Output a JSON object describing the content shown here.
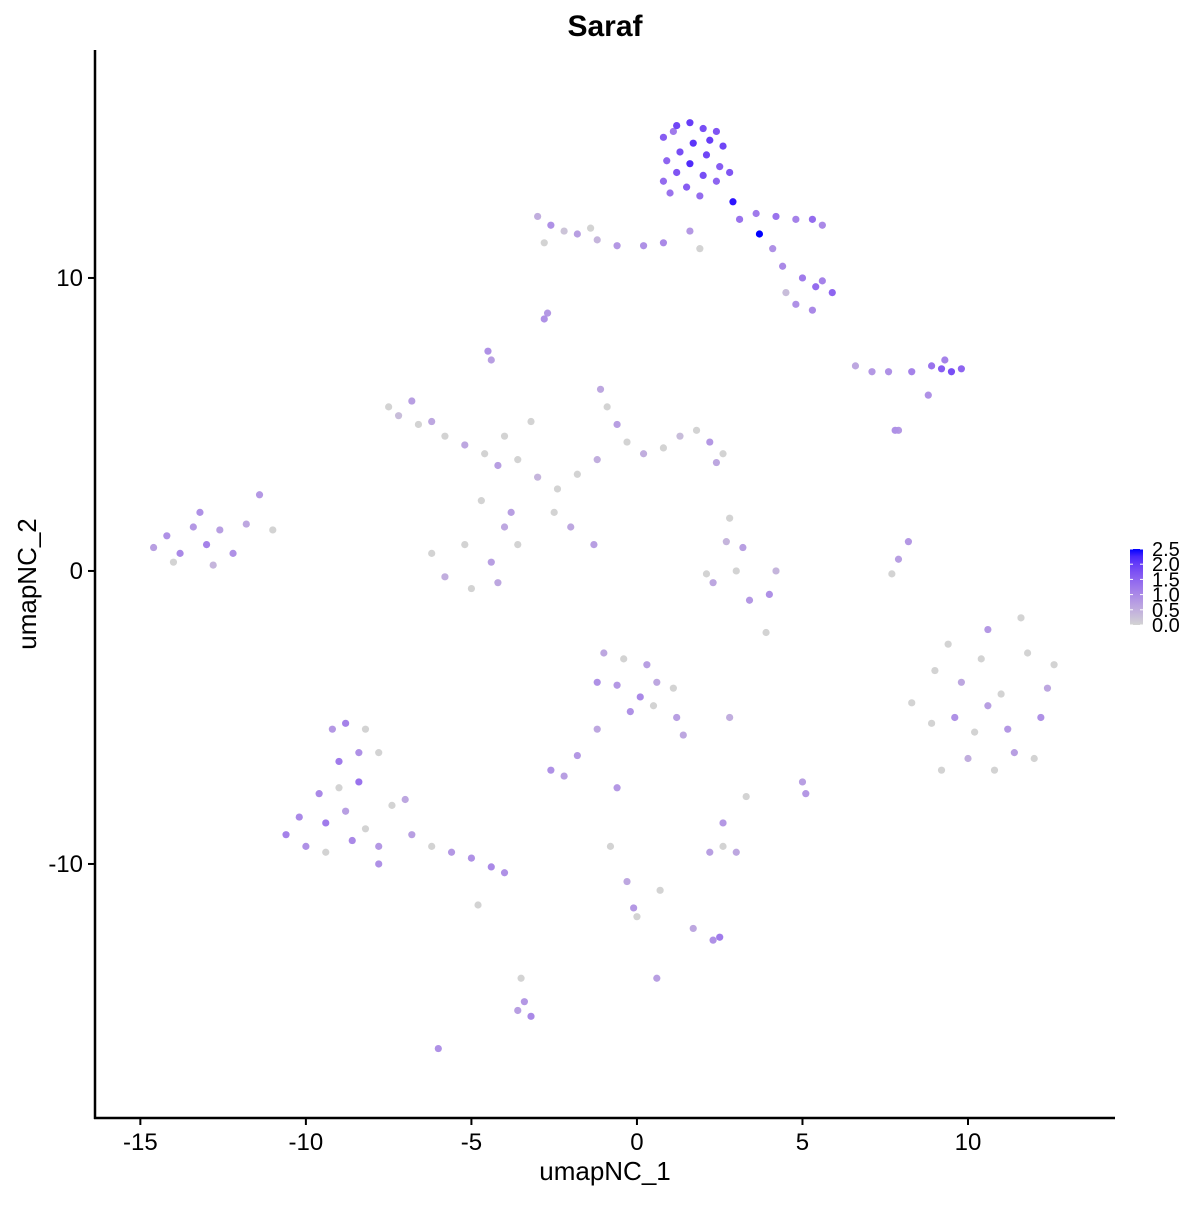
{
  "chart_data": {
    "type": "scatter",
    "title": "Saraf",
    "xlabel": "umapNC_1",
    "ylabel": "umapNC_2",
    "x": [
      0.8,
      1.2,
      1.6,
      2.0,
      2.4,
      2.6,
      0.9,
      1.3,
      1.7,
      2.1,
      2.5,
      0.8,
      1.2,
      1.6,
      2.0,
      2.4,
      2.8,
      1.0,
      1.5,
      1.9,
      2.9,
      3.1,
      3.7,
      1.1,
      2.2,
      3.6,
      4.2,
      4.8,
      5.3,
      5.6,
      4.1,
      4.4,
      5.0,
      5.4,
      5.9,
      5.6,
      4.8,
      5.3,
      4.5,
      -3.0,
      -2.6,
      -2.2,
      -1.8,
      -1.2,
      -2.8,
      -0.6,
      0.2,
      0.8,
      1.6,
      1.9,
      -1.4,
      -2.7,
      -2.8,
      -4.5,
      -4.4,
      6.6,
      7.1,
      7.6,
      8.3,
      8.9,
      9.2,
      9.5,
      9.8,
      9.3,
      8.8,
      7.8,
      -7.5,
      -7.2,
      -6.8,
      -6.6,
      -6.2,
      -5.8,
      -5.2,
      -4.6,
      -4.2,
      -3.6,
      -3.0,
      -2.4,
      -1.8,
      -1.2,
      -1.1,
      -0.9,
      -0.6,
      -0.3,
      0.2,
      0.8,
      1.3,
      1.8,
      2.2,
      2.6,
      2.4,
      -4.7,
      -4.0,
      -3.6,
      -4.4,
      -5.2,
      -5.8,
      -6.2,
      -5.0,
      -4.2,
      -3.8,
      -2.0,
      -1.3,
      -3.2,
      -4.0,
      -2.5,
      -14.6,
      -14.2,
      -13.8,
      -13.4,
      -13.0,
      -12.6,
      -12.2,
      -11.8,
      -11.4,
      -11.0,
      -14.0,
      -12.8,
      -13.2,
      2.7,
      3.2,
      3.0,
      2.3,
      3.4,
      4.0,
      2.1,
      4.2,
      2.8,
      8.2,
      7.9,
      7.7,
      8.3,
      8.9,
      9.4,
      9.8,
      10.2,
      10.6,
      11.0,
      11.4,
      11.8,
      12.2,
      12.6,
      9.2,
      10.0,
      10.8,
      11.6,
      12.4,
      9.6,
      10.4,
      11.2,
      12.0,
      10.6,
      9.0,
      -1.0,
      -0.4,
      0.3,
      -1.2,
      -0.6,
      0.1,
      0.6,
      1.1,
      1.2,
      -0.2,
      0.5,
      -1.2,
      -1.8,
      -2.6,
      -2.2,
      2.8,
      1.4,
      -9.2,
      -8.8,
      -8.2,
      -9.0,
      -8.4,
      -7.8,
      -9.6,
      -9.0,
      -8.4,
      -10.2,
      -9.4,
      -8.8,
      -8.2,
      -10.6,
      -10.0,
      -9.4,
      -8.6,
      -7.8,
      -7.4,
      -6.8,
      -6.2,
      -5.6,
      -5.0,
      -4.4,
      -4.0,
      -7.0,
      -4.8,
      -7.8,
      2.2,
      2.6,
      3.0,
      2.6,
      3.3,
      5.0,
      5.1,
      2.3,
      2.5,
      1.7,
      0.0,
      -0.1,
      -0.3,
      0.7,
      -3.4,
      -3.2,
      -3.6,
      -3.5,
      -6.0,
      0.6,
      -0.8,
      -0.6,
      3.9,
      7.9
    ],
    "y": [
      14.8,
      15.2,
      15.3,
      15.1,
      15.0,
      14.5,
      14.0,
      14.3,
      14.6,
      14.2,
      13.8,
      13.3,
      13.6,
      13.9,
      13.5,
      13.3,
      13.6,
      12.9,
      13.1,
      12.8,
      12.6,
      12.0,
      11.5,
      15.0,
      14.7,
      12.2,
      12.1,
      12.0,
      12.0,
      11.8,
      11.0,
      10.4,
      10.0,
      9.7,
      9.5,
      9.9,
      9.1,
      8.9,
      9.5,
      12.1,
      11.8,
      11.6,
      11.5,
      11.3,
      11.2,
      11.1,
      11.1,
      11.2,
      11.6,
      11.0,
      11.7,
      8.8,
      8.6,
      7.5,
      7.2,
      7.0,
      6.8,
      6.8,
      6.8,
      7.0,
      6.9,
      6.8,
      6.9,
      7.2,
      6.0,
      4.8,
      5.6,
      5.3,
      5.8,
      5.0,
      5.1,
      4.6,
      4.3,
      4.0,
      3.6,
      3.8,
      3.2,
      2.8,
      3.3,
      3.8,
      6.2,
      5.6,
      5.0,
      4.4,
      4.0,
      4.2,
      4.6,
      4.8,
      4.4,
      4.0,
      3.7,
      2.4,
      1.5,
      0.9,
      0.3,
      0.9,
      -0.2,
      0.6,
      -0.6,
      -0.4,
      2.0,
      1.5,
      0.9,
      5.1,
      4.6,
      2.0,
      0.8,
      1.2,
      0.6,
      1.5,
      0.9,
      1.4,
      0.6,
      1.6,
      2.6,
      1.4,
      0.3,
      0.2,
      2.0,
      1.0,
      0.8,
      0.0,
      -0.4,
      -1.0,
      -0.8,
      -0.1,
      0.0,
      1.8,
      1.0,
      0.4,
      -0.1,
      -4.5,
      -5.2,
      -2.5,
      -3.8,
      -5.5,
      -2.0,
      -4.2,
      -6.2,
      -2.8,
      -5.0,
      -3.2,
      -6.8,
      -6.4,
      -6.8,
      -1.6,
      -4.0,
      -5.0,
      -3.0,
      -5.4,
      -6.4,
      -4.6,
      -3.4,
      -2.8,
      -3.0,
      -3.2,
      -3.8,
      -3.9,
      -4.3,
      -3.8,
      -4.0,
      -5.0,
      -4.8,
      -4.6,
      -5.4,
      -6.3,
      -6.8,
      -7.0,
      -5.0,
      -5.6,
      -5.4,
      -5.2,
      -5.4,
      -6.5,
      -6.2,
      -6.2,
      -7.6,
      -7.4,
      -7.2,
      -8.4,
      -8.6,
      -8.2,
      -8.8,
      -9.0,
      -9.4,
      -9.6,
      -9.2,
      -9.4,
      -8.0,
      -9.0,
      -9.4,
      -9.6,
      -9.8,
      -10.1,
      -10.3,
      -7.8,
      -11.4,
      -10.0,
      -9.6,
      -9.4,
      -9.6,
      -8.6,
      -7.7,
      -7.2,
      -7.6,
      -12.6,
      -12.5,
      -12.2,
      -11.8,
      -11.5,
      -10.6,
      -10.9,
      -14.7,
      -15.2,
      -15.0,
      -13.9,
      -16.3,
      -13.9,
      -9.4,
      -7.4,
      -2.1,
      4.8
    ],
    "values": [
      1.6,
      1.9,
      2.0,
      1.8,
      1.7,
      1.9,
      1.5,
      1.8,
      2.1,
      1.9,
      1.6,
      1.4,
      1.7,
      2.2,
      1.8,
      1.5,
      1.7,
      1.3,
      1.6,
      1.4,
      2.4,
      1.3,
      2.5,
      1.2,
      2.0,
      1.2,
      1.3,
      1.1,
      1.4,
      1.0,
      0.9,
      1.0,
      1.2,
      1.4,
      1.5,
      1.1,
      0.9,
      1.0,
      0.3,
      0.5,
      0.9,
      0.2,
      0.7,
      0.4,
      0.0,
      0.8,
      0.9,
      1.0,
      0.8,
      0.0,
      0.0,
      0.8,
      0.9,
      0.9,
      0.7,
      0.6,
      0.8,
      0.9,
      1.1,
      1.3,
      1.6,
      1.8,
      1.5,
      1.1,
      0.9,
      0.9,
      0.0,
      0.3,
      0.7,
      0.0,
      0.6,
      0.0,
      0.6,
      0.0,
      0.7,
      0.0,
      0.4,
      0.0,
      0.0,
      0.5,
      0.6,
      0.0,
      0.7,
      0.0,
      0.5,
      0.0,
      0.3,
      0.0,
      0.8,
      0.0,
      0.6,
      0.0,
      0.6,
      0.0,
      0.7,
      0.0,
      0.5,
      0.0,
      0.0,
      0.6,
      0.7,
      0.6,
      0.7,
      0.0,
      0.0,
      0.0,
      0.7,
      0.9,
      1.0,
      0.8,
      1.1,
      0.7,
      0.9,
      0.6,
      0.8,
      0.0,
      0.0,
      0.4,
      0.9,
      0.4,
      0.7,
      0.0,
      0.6,
      0.8,
      0.9,
      0.0,
      0.4,
      0.0,
      0.8,
      0.7,
      0.0,
      0.0,
      0.0,
      0.0,
      0.6,
      0.0,
      0.8,
      0.0,
      0.7,
      0.0,
      0.9,
      0.0,
      0.0,
      0.5,
      0.0,
      0.0,
      0.6,
      0.9,
      0.0,
      0.8,
      0.0,
      0.7,
      0.0,
      0.6,
      0.0,
      0.7,
      0.9,
      0.8,
      1.0,
      0.6,
      0.0,
      0.7,
      0.9,
      0.0,
      0.6,
      0.8,
      0.9,
      0.7,
      0.5,
      0.6,
      0.8,
      1.1,
      0.0,
      1.2,
      0.9,
      0.0,
      1.0,
      0.0,
      1.3,
      1.0,
      1.2,
      0.7,
      0.0,
      1.1,
      0.9,
      0.0,
      1.0,
      0.8,
      0.0,
      0.7,
      0.0,
      0.8,
      0.9,
      1.0,
      0.9,
      0.6,
      0.0,
      0.9,
      0.7,
      0.0,
      0.6,
      0.8,
      0.0,
      0.7,
      0.8,
      0.9,
      1.2,
      0.6,
      0.0,
      0.8,
      0.6,
      0.0,
      0.8,
      1.0,
      0.7,
      0.0,
      0.9,
      0.7,
      0.0,
      0.8,
      0.0,
      0.8
    ],
    "xlim": [
      -16.37,
      14.44
    ],
    "ylim": [
      -18.67,
      17.78
    ],
    "xticks": [
      -15,
      -10,
      -5,
      0,
      5,
      10
    ],
    "yticks": [
      -10,
      0,
      10
    ],
    "colorbar": {
      "lim": [
        0,
        2.5
      ],
      "ticks": [
        {
          "value": 0,
          "label": "0.0"
        },
        0.5,
        {
          "value": 1,
          "label": "1.0"
        },
        1.5,
        {
          "value": 2,
          "label": "2.0"
        },
        2.5
      ],
      "low_color": "#d3d3d3",
      "high_color": "#0000ff"
    }
  }
}
